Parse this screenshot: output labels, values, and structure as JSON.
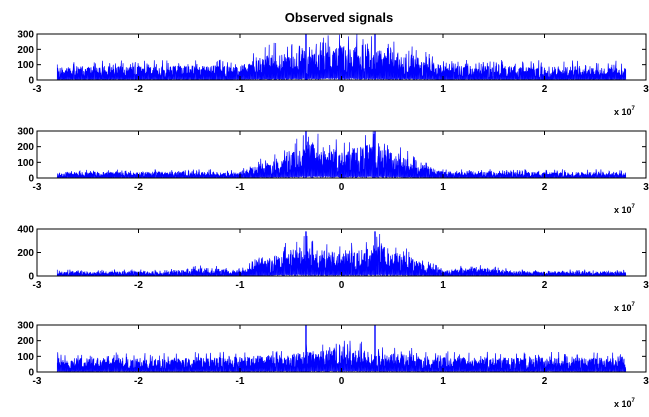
{
  "figure": {
    "title": "Observed signals"
  },
  "chart_data": [
    {
      "type": "line",
      "title": "Observed signals",
      "x_multiplier_label": "x 10",
      "x_multiplier_exponent": "7",
      "xlim": [
        -3,
        3
      ],
      "ylim": [
        0,
        300
      ],
      "xticks": [
        "-3",
        "-2",
        "-1",
        "0",
        "1",
        "2",
        "3"
      ],
      "yticks": [
        "0",
        "100",
        "200",
        "300"
      ],
      "color": "#0000ff",
      "grid": false,
      "signal_x_range": [
        -2.8,
        2.8
      ],
      "envelope": {
        "x": [
          -2.8,
          -1.0,
          -0.7,
          0,
          0.7,
          1.0,
          2.8
        ],
        "y": [
          90,
          95,
          170,
          230,
          170,
          95,
          90
        ]
      },
      "spikes": [
        {
          "x": -0.35,
          "y": 300
        },
        {
          "x": 0.33,
          "y": 300
        }
      ]
    },
    {
      "type": "line",
      "title": "",
      "x_multiplier_label": "x 10",
      "x_multiplier_exponent": "7",
      "xlim": [
        -3,
        3
      ],
      "ylim": [
        0,
        300
      ],
      "xticks": [
        "-3",
        "-2",
        "-1",
        "0",
        "1",
        "2",
        "3"
      ],
      "yticks": [
        "0",
        "100",
        "200",
        "300"
      ],
      "color": "#0000ff",
      "grid": false,
      "signal_x_range": [
        -2.8,
        2.8
      ],
      "envelope": {
        "x": [
          -2.8,
          -1.0,
          -0.5,
          -0.3,
          0,
          0.3,
          0.5,
          1.0,
          2.8
        ],
        "y": [
          40,
          40,
          160,
          230,
          170,
          230,
          160,
          40,
          40
        ]
      },
      "spikes": [
        {
          "x": -0.35,
          "y": 300
        },
        {
          "x": 0.33,
          "y": 300
        }
      ]
    },
    {
      "type": "line",
      "title": "",
      "x_multiplier_label": "x 10",
      "x_multiplier_exponent": "7",
      "xlim": [
        -3,
        3
      ],
      "ylim": [
        0,
        400
      ],
      "xticks": [
        "-3",
        "-2",
        "-1",
        "0",
        "1",
        "2",
        "3"
      ],
      "yticks": [
        "0",
        "200",
        "400"
      ],
      "color": "#0000ff",
      "grid": false,
      "signal_x_range": [
        -2.8,
        2.8
      ],
      "envelope": {
        "x": [
          -2.8,
          -1.8,
          -1.3,
          -1.0,
          -0.4,
          0,
          0.4,
          1.0,
          1.3,
          1.8,
          2.8
        ],
        "y": [
          40,
          40,
          70,
          50,
          260,
          190,
          260,
          50,
          70,
          40,
          40
        ]
      },
      "spikes": [
        {
          "x": -0.35,
          "y": 380
        },
        {
          "x": 0.33,
          "y": 380
        }
      ]
    },
    {
      "type": "line",
      "title": "",
      "x_multiplier_label": "x 10",
      "x_multiplier_exponent": "7",
      "xlim": [
        -3,
        3
      ],
      "ylim": [
        0,
        300
      ],
      "xticks": [
        "-3",
        "-2",
        "-1",
        "0",
        "1",
        "2",
        "3"
      ],
      "yticks": [
        "0",
        "100",
        "200",
        "300"
      ],
      "color": "#0000ff",
      "grid": false,
      "signal_x_range": [
        -2.8,
        2.8
      ],
      "envelope": {
        "x": [
          -2.8,
          -1.0,
          -0.5,
          0,
          0.5,
          1.0,
          2.8
        ],
        "y": [
          90,
          95,
          120,
          150,
          120,
          95,
          90
        ]
      },
      "spikes": [
        {
          "x": -0.35,
          "y": 300
        },
        {
          "x": 0.33,
          "y": 300
        }
      ]
    }
  ]
}
